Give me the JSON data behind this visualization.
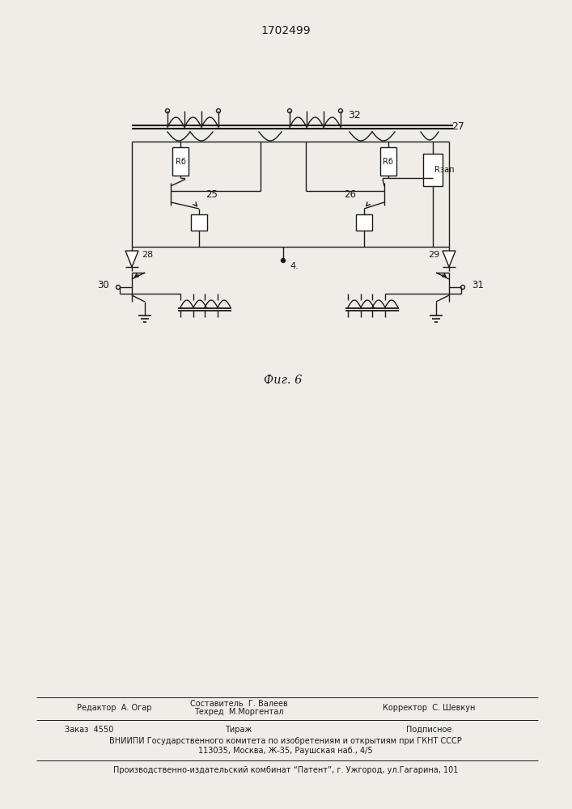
{
  "title": "1702499",
  "fig_label": "Фиг. 6",
  "background_color": "#f0ede8",
  "line_color": "#1a1a1a",
  "footer_editor": "Редактор  А. Огар",
  "footer_sostavitel": "Составитель  Г. Валеев",
  "footer_tekhred": "Техред  М.Моргентал",
  "footer_korrektor": "Корректор  С. Шевкун",
  "footer_zakaz": "Заказ  4550",
  "footer_tirazh": "Тираж",
  "footer_podpisnoe": "Подписное",
  "footer_vnipi": "ВНИИПИ Государственного комитета по изобретениям и открытиям при ГКНТ СССР",
  "footer_address": "113035, Москва, Ж-35, Раушская наб., 4/5",
  "footer_plant": "Производственно-издательский комбинат “Патент”, г. Ужгород, ул.Гагарина, 101",
  "label_Rb_left": "Rб",
  "label_Rb_right": "Rб",
  "label_Rzap": "Rзап",
  "label_25": "25",
  "label_26": "26",
  "label_27": "27",
  "label_28": "28",
  "label_29": "29",
  "label_30": "30",
  "label_31": "31",
  "label_32": "32"
}
